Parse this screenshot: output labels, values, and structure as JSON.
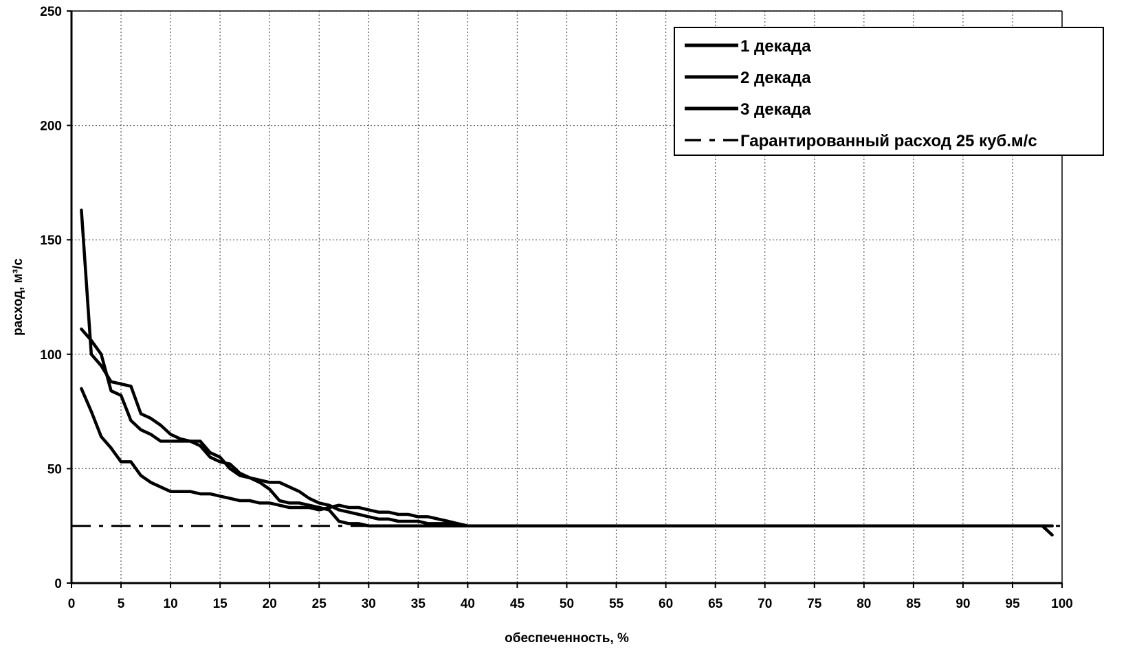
{
  "chart_data": {
    "type": "line",
    "xlabel": "обеспеченность, %",
    "ylabel": "расход, м³/с",
    "xlim": [
      0,
      100
    ],
    "ylim": [
      0,
      250
    ],
    "xticks": [
      0,
      5,
      10,
      15,
      20,
      25,
      30,
      35,
      40,
      45,
      50,
      55,
      60,
      65,
      70,
      75,
      80,
      85,
      90,
      95,
      100
    ],
    "yticks": [
      0,
      50,
      100,
      150,
      200,
      250
    ],
    "grid": true,
    "legend_position": "top-right",
    "series": [
      {
        "name": "1 декада",
        "color": "#000000",
        "style": "solid",
        "x": [
          1,
          2,
          3,
          4,
          5,
          6,
          7,
          8,
          9,
          10,
          11,
          12,
          13,
          14,
          15,
          16,
          17,
          18,
          19,
          20,
          21,
          22,
          23,
          24,
          25,
          26,
          27,
          28,
          29,
          30,
          31,
          32,
          33,
          34,
          35,
          36,
          37,
          38,
          39,
          40,
          50,
          60,
          70,
          80,
          90,
          95,
          98,
          99
        ],
        "y": [
          163,
          100,
          95,
          88,
          87,
          86,
          74,
          72,
          69,
          65,
          63,
          62,
          62,
          57,
          55,
          50,
          47,
          46,
          45,
          44,
          44,
          42,
          40,
          37,
          35,
          34,
          32,
          31,
          30,
          29,
          28,
          28,
          27,
          27,
          27,
          26,
          26,
          26,
          25,
          25,
          25,
          25,
          25,
          25,
          25,
          25,
          25,
          21
        ]
      },
      {
        "name": "2 декада",
        "color": "#000000",
        "style": "solid",
        "x": [
          1,
          2,
          3,
          4,
          5,
          6,
          7,
          8,
          9,
          10,
          11,
          12,
          13,
          14,
          15,
          16,
          17,
          18,
          19,
          20,
          21,
          22,
          23,
          24,
          25,
          26,
          27,
          28,
          29,
          30,
          32,
          34,
          36,
          38,
          40,
          60,
          80,
          99
        ],
        "y": [
          111,
          106,
          100,
          84,
          82,
          71,
          67,
          65,
          62,
          62,
          62,
          62,
          60,
          55,
          53,
          52,
          48,
          46,
          44,
          41,
          36,
          35,
          35,
          34,
          33,
          32,
          27,
          26,
          26,
          25,
          25,
          25,
          25,
          25,
          25,
          25,
          25,
          25
        ]
      },
      {
        "name": "3 декада",
        "color": "#000000",
        "style": "solid",
        "x": [
          1,
          2,
          3,
          4,
          5,
          6,
          7,
          8,
          9,
          10,
          11,
          12,
          13,
          14,
          15,
          16,
          17,
          18,
          19,
          20,
          21,
          22,
          23,
          24,
          25,
          26,
          27,
          28,
          29,
          30,
          31,
          32,
          33,
          34,
          35,
          36,
          37,
          38,
          39,
          40,
          60,
          80,
          99
        ],
        "y": [
          85,
          75,
          64,
          59,
          53,
          53,
          47,
          44,
          42,
          40,
          40,
          40,
          39,
          39,
          38,
          37,
          36,
          36,
          35,
          35,
          34,
          33,
          33,
          33,
          32,
          33,
          34,
          33,
          33,
          32,
          31,
          31,
          30,
          30,
          29,
          29,
          28,
          27,
          26,
          25,
          25,
          25,
          25
        ]
      },
      {
        "name": "Гарантированный расход 25 куб.м/с",
        "color": "#000000",
        "style": "dashdot",
        "x": [
          0,
          100
        ],
        "y": [
          25,
          25
        ]
      }
    ]
  }
}
